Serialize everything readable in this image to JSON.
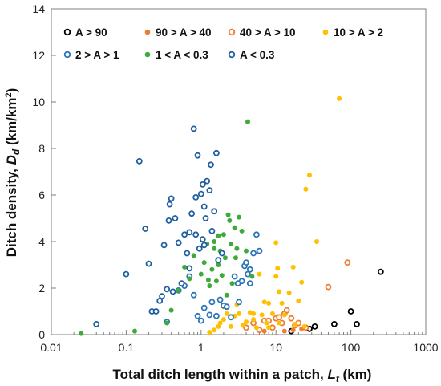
{
  "chart_data": {
    "type": "scatter",
    "xscale": "log",
    "xlim": [
      0.01,
      1000
    ],
    "ylim": [
      0,
      14
    ],
    "xticks": [
      "0.01",
      "0.1",
      "1",
      "10",
      "100",
      "1000"
    ],
    "yticks": [
      "0",
      "2",
      "4",
      "6",
      "8",
      "10",
      "12",
      "14"
    ],
    "xlabel": {
      "main": "Total ditch length within a patch, ",
      "var": "L",
      "sub": "t",
      "unit": " (km)"
    },
    "ylabel": {
      "main": "Ditch density, ",
      "var": "D",
      "sub": "d",
      "unit_pre": " (km/km",
      "unit_sup": "2",
      "unit_post": ")"
    },
    "grid": false,
    "legend_placement": "top",
    "series": [
      {
        "name": "A > 90",
        "color": "#000000",
        "marker": "open",
        "points": [
          [
            16,
            0.15
          ],
          [
            28,
            0.25
          ],
          [
            33,
            0.35
          ],
          [
            60,
            0.45
          ],
          [
            100,
            1.0
          ],
          [
            120,
            0.45
          ],
          [
            250,
            2.7
          ]
        ]
      },
      {
        "name": "90 > A > 40",
        "color": "#ED7D31",
        "marker": "filled",
        "points": [
          [
            7,
            0.15
          ],
          [
            13,
            0.15
          ],
          [
            17,
            0.2
          ],
          [
            22,
            0.25
          ]
        ]
      },
      {
        "name": "40 > A > 10",
        "color": "#ED7D31",
        "marker": "open",
        "points": [
          [
            4,
            0.3
          ],
          [
            5,
            0.5
          ],
          [
            6,
            0.2
          ],
          [
            7,
            0.6
          ],
          [
            8,
            0.6
          ],
          [
            9,
            0.3
          ],
          [
            10,
            0.7
          ],
          [
            11,
            0.75
          ],
          [
            12,
            0.5
          ],
          [
            13,
            0.9
          ],
          [
            14,
            1.05
          ],
          [
            16,
            0.7
          ],
          [
            18,
            0.4
          ],
          [
            20,
            0.5
          ],
          [
            25,
            0.3
          ],
          [
            50,
            2.05
          ],
          [
            90,
            3.1
          ]
        ]
      },
      {
        "name": "10 > A > 2",
        "color": "#FFC000",
        "marker": "filled",
        "points": [
          [
            1.3,
            0.1
          ],
          [
            1.5,
            0.2
          ],
          [
            1.7,
            0.35
          ],
          [
            1.8,
            0.5
          ],
          [
            2,
            0.65
          ],
          [
            2.2,
            0.9
          ],
          [
            2.5,
            0.35
          ],
          [
            2.8,
            0.8
          ],
          [
            3.2,
            0.9
          ],
          [
            3.6,
            0.4
          ],
          [
            4,
            0.55
          ],
          [
            4.5,
            0.95
          ],
          [
            5,
            0.65
          ],
          [
            5.5,
            0.3
          ],
          [
            6,
            2.6
          ],
          [
            6.5,
            0.85
          ],
          [
            7,
            1.4
          ],
          [
            7.5,
            0.5
          ],
          [
            8,
            1.35
          ],
          [
            9,
            0.9
          ],
          [
            10,
            2.5
          ],
          [
            10.5,
            2.85
          ],
          [
            11,
            1.85
          ],
          [
            12,
            1.35
          ],
          [
            13,
            0.85
          ],
          [
            15,
            1.8
          ],
          [
            17,
            2.9
          ],
          [
            18,
            0.45
          ],
          [
            20,
            1.45
          ],
          [
            22,
            2.25
          ],
          [
            24,
            0.35
          ],
          [
            25,
            6.25
          ],
          [
            28,
            6.85
          ],
          [
            35,
            4.0
          ],
          [
            70,
            10.15
          ],
          [
            10,
            3.95
          ],
          [
            2,
            1.2
          ],
          [
            3,
            1.3
          ],
          [
            5,
            0.9
          ],
          [
            8,
            0.3
          ],
          [
            11,
            0.5
          ]
        ]
      },
      {
        "name": "2 > A > 1",
        "color": "#2E75B6",
        "marker": "open",
        "points": [
          [
            0.35,
            0.55
          ],
          [
            0.5,
            1.9
          ],
          [
            0.6,
            2.1
          ],
          [
            0.7,
            2.5
          ],
          [
            0.8,
            1.7
          ],
          [
            0.9,
            0.8
          ],
          [
            1,
            0.6
          ],
          [
            1.1,
            1.15
          ],
          [
            1.3,
            0.85
          ],
          [
            1.4,
            1.4
          ],
          [
            1.6,
            0.8
          ],
          [
            1.8,
            1.5
          ],
          [
            2,
            1.25
          ],
          [
            2.2,
            1.2
          ],
          [
            2.5,
            0.75
          ],
          [
            2.8,
            2.5
          ],
          [
            3.1,
            2.2
          ],
          [
            3.5,
            2.3
          ],
          [
            3.8,
            2.95
          ],
          [
            4,
            3.1
          ],
          [
            4.2,
            2.6
          ],
          [
            4.5,
            2.2
          ],
          [
            5,
            3.5
          ],
          [
            5.5,
            4.3
          ],
          [
            6,
            3.6
          ],
          [
            4.5,
            2.8
          ],
          [
            3.2,
            1.4
          ]
        ]
      },
      {
        "name": "1 < A  < 0.3",
        "color": "#3DAA3A",
        "marker": "filled",
        "points": [
          [
            0.025,
            0.05
          ],
          [
            0.13,
            0.15
          ],
          [
            0.35,
            0.5
          ],
          [
            0.4,
            1.05
          ],
          [
            0.5,
            1.9
          ],
          [
            0.6,
            2.9
          ],
          [
            0.7,
            2.4
          ],
          [
            0.8,
            3.4
          ],
          [
            1,
            2.6
          ],
          [
            1.1,
            3.1
          ],
          [
            1.2,
            3.9
          ],
          [
            1.3,
            2.1
          ],
          [
            1.4,
            2.8
          ],
          [
            1.5,
            4.0
          ],
          [
            1.6,
            2.3
          ],
          [
            1.7,
            3.0
          ],
          [
            1.8,
            3.6
          ],
          [
            1.9,
            2.55
          ],
          [
            2,
            4.3
          ],
          [
            2.1,
            3.3
          ],
          [
            2.2,
            1.7
          ],
          [
            2.3,
            5.15
          ],
          [
            2.5,
            3.9
          ],
          [
            2.6,
            2.2
          ],
          [
            2.8,
            4.6
          ],
          [
            3,
            3.7
          ],
          [
            3.2,
            5.05
          ],
          [
            3.5,
            4.45
          ],
          [
            4,
            3.6
          ],
          [
            4.2,
            9.15
          ],
          [
            4.8,
            2.5
          ],
          [
            2.4,
            4.9
          ],
          [
            1.7,
            4.25
          ],
          [
            1.5,
            3.7
          ],
          [
            2.9,
            3.3
          ],
          [
            1.25,
            2.35
          ]
        ]
      },
      {
        "name": "A < 0.3",
        "color": "#1F5F9F",
        "marker": "open",
        "points": [
          [
            0.04,
            0.45
          ],
          [
            0.1,
            2.6
          ],
          [
            0.15,
            7.45
          ],
          [
            0.18,
            4.55
          ],
          [
            0.2,
            3.05
          ],
          [
            0.22,
            1.0
          ],
          [
            0.25,
            1.0
          ],
          [
            0.28,
            1.45
          ],
          [
            0.3,
            1.65
          ],
          [
            0.32,
            3.85
          ],
          [
            0.35,
            1.95
          ],
          [
            0.37,
            4.9
          ],
          [
            0.38,
            5.6
          ],
          [
            0.4,
            5.85
          ],
          [
            0.42,
            1.85
          ],
          [
            0.45,
            5.0
          ],
          [
            0.5,
            3.95
          ],
          [
            0.55,
            2.2
          ],
          [
            0.6,
            4.3
          ],
          [
            0.65,
            3.5
          ],
          [
            0.7,
            4.4
          ],
          [
            0.75,
            5.2
          ],
          [
            0.8,
            8.85
          ],
          [
            0.85,
            4.3
          ],
          [
            0.9,
            7.7
          ],
          [
            0.95,
            3.7
          ],
          [
            1.0,
            6.05
          ],
          [
            1.05,
            4.1
          ],
          [
            1.1,
            5.5
          ],
          [
            1.15,
            5.0
          ],
          [
            1.2,
            6.6
          ],
          [
            1.3,
            6.2
          ],
          [
            1.35,
            7.3
          ],
          [
            1.4,
            4.45
          ],
          [
            1.5,
            5.3
          ],
          [
            1.6,
            7.8
          ],
          [
            1.7,
            3.2
          ],
          [
            1.9,
            3.5
          ],
          [
            0.85,
            5.9
          ],
          [
            0.7,
            2.85
          ],
          [
            1.05,
            6.45
          ],
          [
            1.1,
            3.85
          ]
        ]
      }
    ]
  }
}
